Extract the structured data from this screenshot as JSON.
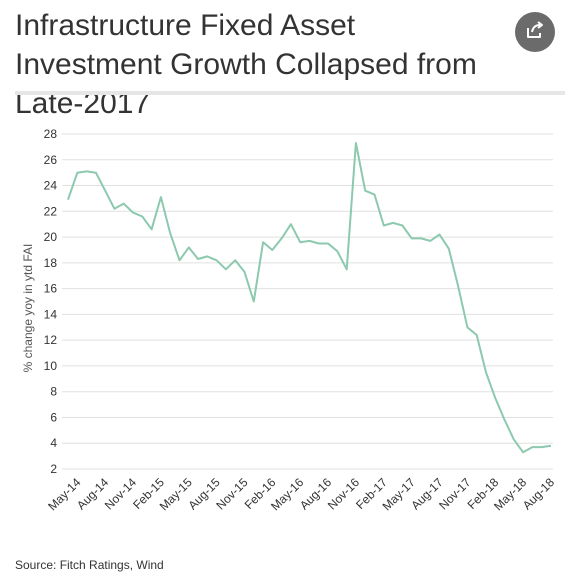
{
  "header": {
    "title": "Infrastructure Fixed Asset Investment Growth Collapsed from Late-2017",
    "share_icon": "share-icon"
  },
  "footer": {
    "source": "Source: Fitch Ratings, Wind"
  },
  "colors": {
    "line": "#8cc9ae",
    "grid": "#e0e0e0",
    "text": "#333333",
    "share_bg": "#6b6b6b"
  },
  "chart_data": {
    "type": "line",
    "title": "",
    "xlabel": "",
    "ylabel": "% change yoy in ytd FAI",
    "ylim": [
      2,
      28
    ],
    "yticks": [
      2,
      4,
      6,
      8,
      10,
      12,
      14,
      16,
      18,
      20,
      22,
      24,
      26,
      28
    ],
    "grid": true,
    "legend": "none",
    "xtick_labels": [
      "May-14",
      "Aug-14",
      "Nov-14",
      "Feb-15",
      "May-15",
      "Aug-15",
      "Nov-15",
      "Feb-16",
      "May-16",
      "Aug-16",
      "Nov-16",
      "Feb-17",
      "May-17",
      "Aug-17",
      "Nov-17",
      "Feb-18",
      "May-18",
      "Aug-18"
    ],
    "x": [
      "Apr-14",
      "May-14",
      "Jun-14",
      "Jul-14",
      "Aug-14",
      "Sep-14",
      "Oct-14",
      "Nov-14",
      "Dec-14",
      "Jan-15",
      "Feb-15",
      "Mar-15",
      "Apr-15",
      "May-15",
      "Jun-15",
      "Jul-15",
      "Aug-15",
      "Sep-15",
      "Oct-15",
      "Nov-15",
      "Dec-15",
      "Jan-16",
      "Feb-16",
      "Mar-16",
      "Apr-16",
      "May-16",
      "Jun-16",
      "Jul-16",
      "Aug-16",
      "Sep-16",
      "Oct-16",
      "Nov-16",
      "Dec-16",
      "Jan-17",
      "Feb-17",
      "Mar-17",
      "Apr-17",
      "May-17",
      "Jun-17",
      "Jul-17",
      "Aug-17",
      "Sep-17",
      "Oct-17",
      "Nov-17",
      "Dec-17",
      "Jan-18",
      "Feb-18",
      "Mar-18",
      "Apr-18",
      "May-18",
      "Jun-18",
      "Jul-18",
      "Aug-18"
    ],
    "series": [
      {
        "values": [
          22.9,
          25.0,
          25.1,
          25.0,
          23.6,
          22.2,
          22.6,
          21.9,
          21.6,
          20.6,
          23.1,
          20.3,
          18.2,
          19.2,
          18.3,
          18.5,
          18.2,
          17.5,
          18.2,
          17.3,
          15.0,
          19.6,
          19.0,
          19.9,
          21.0,
          19.6,
          19.7,
          19.5,
          19.5,
          18.9,
          17.5,
          27.3,
          23.6,
          23.3,
          20.9,
          21.1,
          20.9,
          19.9,
          19.9,
          19.7,
          20.2,
          19.1,
          16.2,
          13.0,
          12.4,
          9.5,
          7.5,
          5.8,
          4.3,
          3.3,
          3.7,
          3.7,
          3.8
        ]
      }
    ]
  }
}
